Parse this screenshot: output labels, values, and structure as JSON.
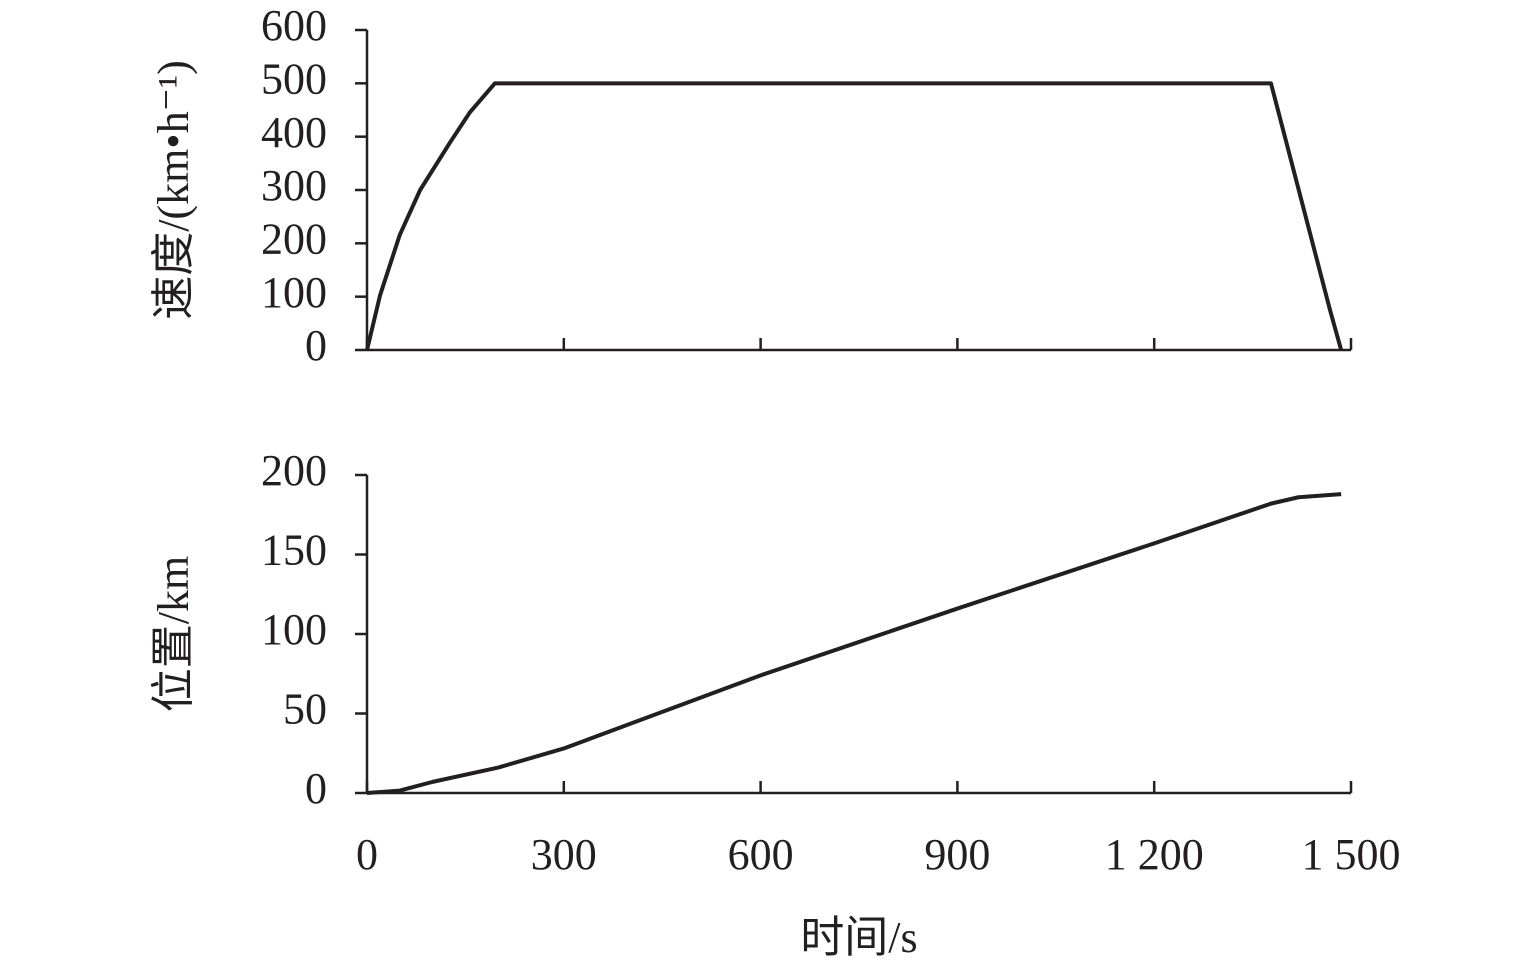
{
  "chart_data": [
    {
      "type": "line",
      "ylabel": "速度/(km•h⁻¹)",
      "x": [
        0,
        20,
        50,
        81,
        126,
        157,
        195,
        1378,
        1468,
        1485
      ],
      "values": [
        0,
        103,
        216,
        300,
        388,
        446,
        500,
        500,
        75,
        0
      ],
      "color": "#231f20",
      "xlim": [
        0,
        1500
      ],
      "ylim": [
        0,
        600
      ],
      "yticks": [
        0,
        100,
        200,
        300,
        400,
        500,
        600
      ]
    },
    {
      "type": "line",
      "ylabel": "位置/km",
      "xlabel": "时间/s",
      "x": [
        0,
        50,
        100,
        200,
        300,
        600,
        900,
        1200,
        1378,
        1420,
        1485
      ],
      "values": [
        0,
        1.5,
        7,
        16,
        28,
        74,
        116,
        157,
        182,
        186,
        188
      ],
      "color": "#231f20",
      "xlim": [
        0,
        1500
      ],
      "ylim": [
        0,
        200
      ],
      "yticks": [
        0,
        50,
        100,
        150,
        200
      ],
      "xticks": [
        0,
        300,
        600,
        900,
        {
          "value": 1200,
          "label": "1 200"
        },
        {
          "value": 1500,
          "label": "1 500"
        }
      ]
    }
  ]
}
